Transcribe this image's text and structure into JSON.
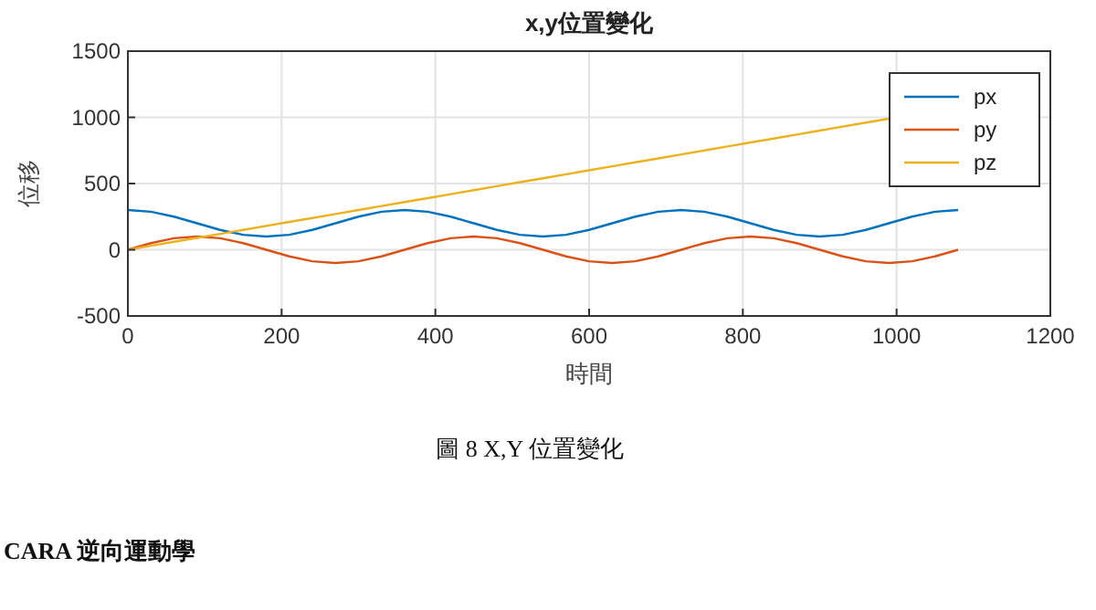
{
  "chart_data": {
    "type": "line",
    "title": "x,y位置變化",
    "xlabel": "時間",
    "ylabel": "位移",
    "x": [
      0,
      30,
      60,
      90,
      120,
      150,
      180,
      210,
      240,
      270,
      300,
      330,
      360,
      390,
      420,
      450,
      480,
      510,
      540,
      570,
      600,
      630,
      660,
      690,
      720,
      750,
      780,
      810,
      840,
      870,
      900,
      930,
      960,
      990,
      1020,
      1050,
      1080
    ],
    "series": [
      {
        "name": "px",
        "color": "#0072bd",
        "values": [
          300,
          287,
          250,
          200,
          150,
          113,
          100,
          113,
          150,
          200,
          250,
          287,
          300,
          287,
          250,
          200,
          150,
          113,
          100,
          113,
          150,
          200,
          250,
          287,
          300,
          287,
          250,
          200,
          150,
          113,
          100,
          113,
          150,
          200,
          250,
          287,
          300
        ]
      },
      {
        "name": "py",
        "color": "#d95319",
        "values": [
          0,
          50,
          87,
          100,
          87,
          50,
          0,
          -50,
          -87,
          -100,
          -87,
          -50,
          0,
          50,
          87,
          100,
          87,
          50,
          0,
          -50,
          -87,
          -100,
          -87,
          -50,
          0,
          50,
          87,
          100,
          87,
          50,
          0,
          -50,
          -87,
          -100,
          -87,
          -50,
          0
        ]
      },
      {
        "name": "pz",
        "color": "#edb120",
        "values": [
          0,
          30,
          60,
          90,
          120,
          150,
          180,
          210,
          240,
          270,
          300,
          330,
          360,
          390,
          420,
          450,
          480,
          510,
          540,
          570,
          600,
          630,
          660,
          690,
          720,
          750,
          780,
          810,
          840,
          870,
          900,
          930,
          960,
          990,
          null,
          null,
          null
        ]
      }
    ],
    "xlim": [
      0,
      1200
    ],
    "xticks": [
      0,
      200,
      400,
      600,
      800,
      1000,
      1200
    ],
    "ylim": [
      -500,
      1500
    ],
    "yticks": [
      -500,
      0,
      500,
      1000,
      1500
    ],
    "grid": true,
    "legend": "top right",
    "line_style": "solid",
    "marker": "none",
    "annotations": [
      "圖 8 X,Y 位置變化",
      "CARA 逆向運動學"
    ]
  }
}
